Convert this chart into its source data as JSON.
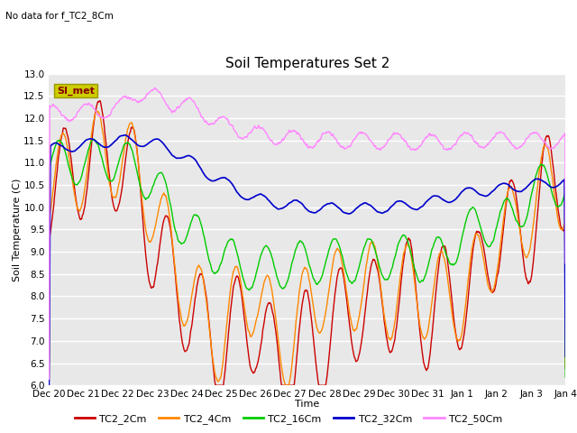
{
  "title": "Soil Temperatures Set 2",
  "top_left_note": "No data for f_TC2_8Cm",
  "xlabel": "Time",
  "ylabel": "Soil Temperature (C)",
  "ylim": [
    6.0,
    13.0
  ],
  "yticks": [
    6.0,
    6.5,
    7.0,
    7.5,
    8.0,
    8.5,
    9.0,
    9.5,
    10.0,
    10.5,
    11.0,
    11.5,
    12.0,
    12.5,
    13.0
  ],
  "xtick_labels": [
    "Dec 20",
    "Dec 21",
    "Dec 22",
    "Dec 23",
    "Dec 24",
    "Dec 25",
    "Dec 26",
    "Dec 27",
    "Dec 28",
    "Dec 29",
    "Dec 30",
    "Dec 31",
    "Jan 1",
    "Jan 2",
    "Jan 3",
    "Jan 4"
  ],
  "colors": {
    "TC2_2Cm": "#cc0000",
    "TC2_4Cm": "#ff8800",
    "TC2_16Cm": "#00cc00",
    "TC2_32Cm": "#0000cc",
    "TC2_50Cm": "#ff88ff"
  },
  "legend_labels": [
    "TC2_2Cm",
    "TC2_4Cm",
    "TC2_16Cm",
    "TC2_32Cm",
    "TC2_50Cm"
  ],
  "si_met_box_facecolor": "#cccc00",
  "si_met_text_color": "#880000",
  "plot_bg_color": "#e8e8e8",
  "fig_bg_color": "#ffffff",
  "grid_color": "#ffffff",
  "num_points": 1500,
  "title_fontsize": 11,
  "axis_fontsize": 8,
  "tick_fontsize": 7.5
}
